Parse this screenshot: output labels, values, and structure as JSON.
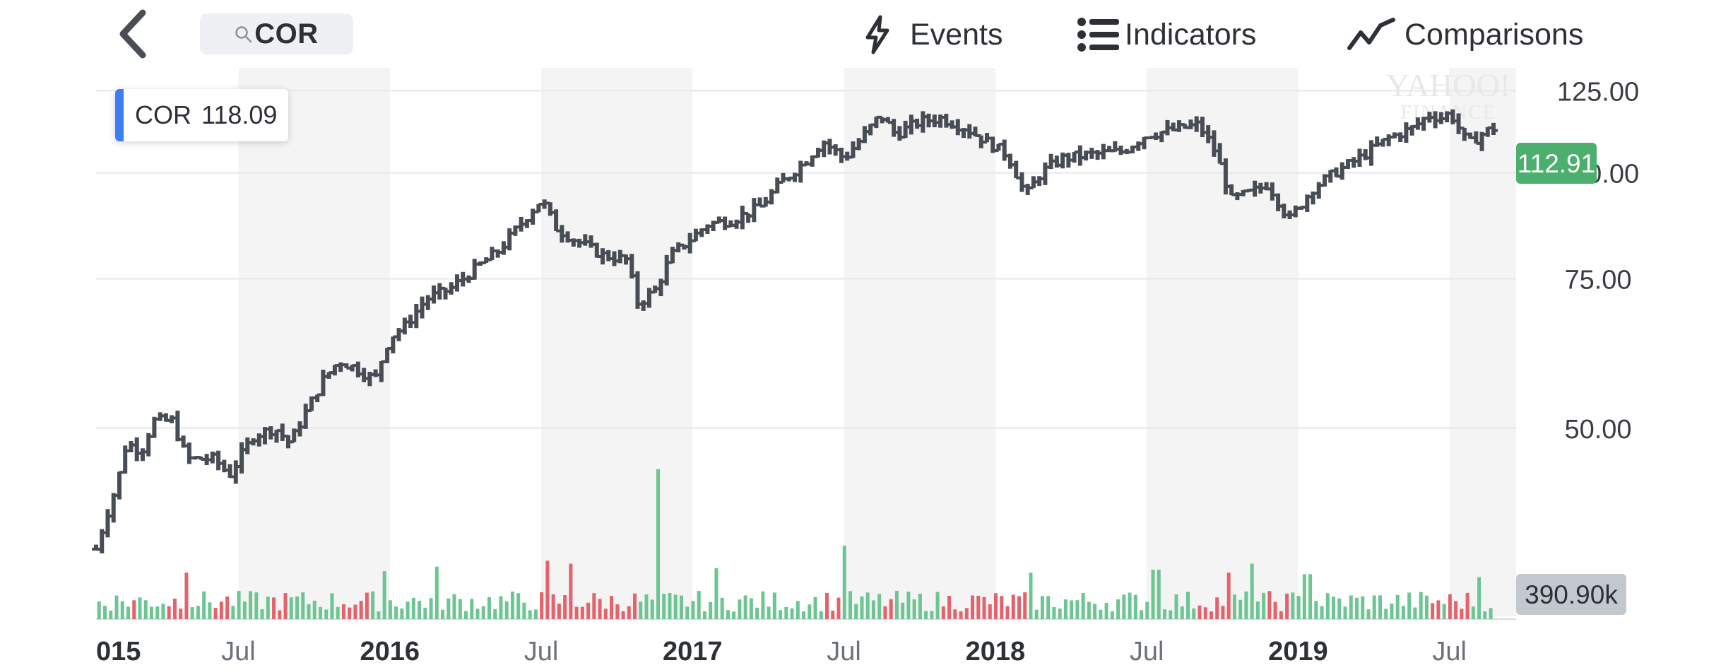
{
  "header": {
    "search_text": "COR",
    "events_label": "Events",
    "indicators_label": "Indicators",
    "comparisons_label": "Comparisons"
  },
  "icons": {
    "back": "chevron-left-icon",
    "search": "magnifier-icon",
    "events": "lightning-icon",
    "indicators": "list-icon",
    "comparisons": "trend-line-icon"
  },
  "tooltip": {
    "symbol": "COR",
    "value": "118.09"
  },
  "watermark": {
    "line1": "YAHOO!",
    "line2": "FINANCE"
  },
  "colors": {
    "ohlc": "#484c54",
    "volume_up": "#6cc592",
    "volume_down": "#e4626b",
    "last_price_badge": "#4caf6e",
    "volume_badge": "#c3c7ce",
    "band": "#f4f4f4",
    "tooltip_accent": "#3b7ef6"
  },
  "chart_data": {
    "type": "ohlc",
    "y_ticks": [
      "125.00",
      "100.00",
      "75.00",
      "50.00"
    ],
    "y_tick_values": [
      125,
      100,
      75,
      50
    ],
    "y_scale": "log",
    "ylim": [
      30,
      133
    ],
    "x_labels": [
      "015",
      "Jul",
      "2016",
      "Jul",
      "2017",
      "Jul",
      "2018",
      "Jul",
      "2019",
      "Jul"
    ],
    "x_label_positions": [
      2015.04,
      2015.5,
      2016.0,
      2016.5,
      2017.0,
      2017.5,
      2018.0,
      2018.5,
      2019.0,
      2019.5
    ],
    "xlim": [
      2015.03,
      2019.72
    ],
    "last_price": "112.91",
    "last_volume": "390.90k",
    "price_anchors": [
      [
        2015.03,
        36
      ],
      [
        2015.06,
        39
      ],
      [
        2015.1,
        43
      ],
      [
        2015.13,
        48
      ],
      [
        2015.18,
        47
      ],
      [
        2015.22,
        51
      ],
      [
        2015.28,
        51
      ],
      [
        2015.33,
        46
      ],
      [
        2015.42,
        46
      ],
      [
        2015.47,
        44
      ],
      [
        2015.55,
        49
      ],
      [
        2015.62,
        50
      ],
      [
        2015.67,
        48
      ],
      [
        2015.72,
        52
      ],
      [
        2015.78,
        57
      ],
      [
        2015.83,
        60
      ],
      [
        2015.88,
        59
      ],
      [
        2015.95,
        57
      ],
      [
        2016.0,
        64
      ],
      [
        2016.05,
        66
      ],
      [
        2016.12,
        71
      ],
      [
        2016.2,
        73
      ],
      [
        2016.28,
        77
      ],
      [
        2016.36,
        81
      ],
      [
        2016.42,
        86
      ],
      [
        2016.5,
        93
      ],
      [
        2016.55,
        86
      ],
      [
        2016.62,
        83
      ],
      [
        2016.7,
        80
      ],
      [
        2016.78,
        79
      ],
      [
        2016.82,
        70
      ],
      [
        2016.88,
        73
      ],
      [
        2016.93,
        80
      ],
      [
        2017.0,
        84
      ],
      [
        2017.05,
        87
      ],
      [
        2017.13,
        88
      ],
      [
        2017.22,
        91
      ],
      [
        2017.3,
        98
      ],
      [
        2017.37,
        103
      ],
      [
        2017.43,
        109
      ],
      [
        2017.5,
        104
      ],
      [
        2017.56,
        110
      ],
      [
        2017.62,
        117
      ],
      [
        2017.67,
        111
      ],
      [
        2017.75,
        115
      ],
      [
        2017.82,
        116
      ],
      [
        2017.9,
        113
      ],
      [
        2017.95,
        110
      ],
      [
        2018.04,
        105
      ],
      [
        2018.1,
        94
      ],
      [
        2018.15,
        100
      ],
      [
        2018.22,
        104
      ],
      [
        2018.3,
        105
      ],
      [
        2018.42,
        106
      ],
      [
        2018.5,
        111
      ],
      [
        2018.57,
        112
      ],
      [
        2018.67,
        114
      ],
      [
        2018.72,
        107
      ],
      [
        2018.78,
        93
      ],
      [
        2018.85,
        95
      ],
      [
        2018.9,
        97
      ],
      [
        2018.97,
        88
      ],
      [
        2019.05,
        96
      ],
      [
        2019.12,
        100
      ],
      [
        2019.2,
        104
      ],
      [
        2019.3,
        110
      ],
      [
        2019.38,
        113
      ],
      [
        2019.43,
        117
      ],
      [
        2019.48,
        116
      ],
      [
        2019.5,
        118
      ],
      [
        2019.56,
        108
      ],
      [
        2019.62,
        112
      ],
      [
        2019.65,
        113
      ]
    ],
    "volume_peaks": [
      [
        2016.88,
        1.0
      ],
      [
        2017.5,
        0.49
      ],
      [
        2015.33,
        0.31
      ],
      [
        2015.98,
        0.32
      ],
      [
        2016.15,
        0.35
      ],
      [
        2016.52,
        0.39
      ],
      [
        2016.6,
        0.37
      ],
      [
        2017.08,
        0.34
      ],
      [
        2018.12,
        0.31
      ],
      [
        2018.53,
        0.33
      ],
      [
        2018.77,
        0.31
      ],
      [
        2018.85,
        0.37
      ],
      [
        2019.03,
        0.3
      ],
      [
        2019.6,
        0.28
      ]
    ]
  }
}
